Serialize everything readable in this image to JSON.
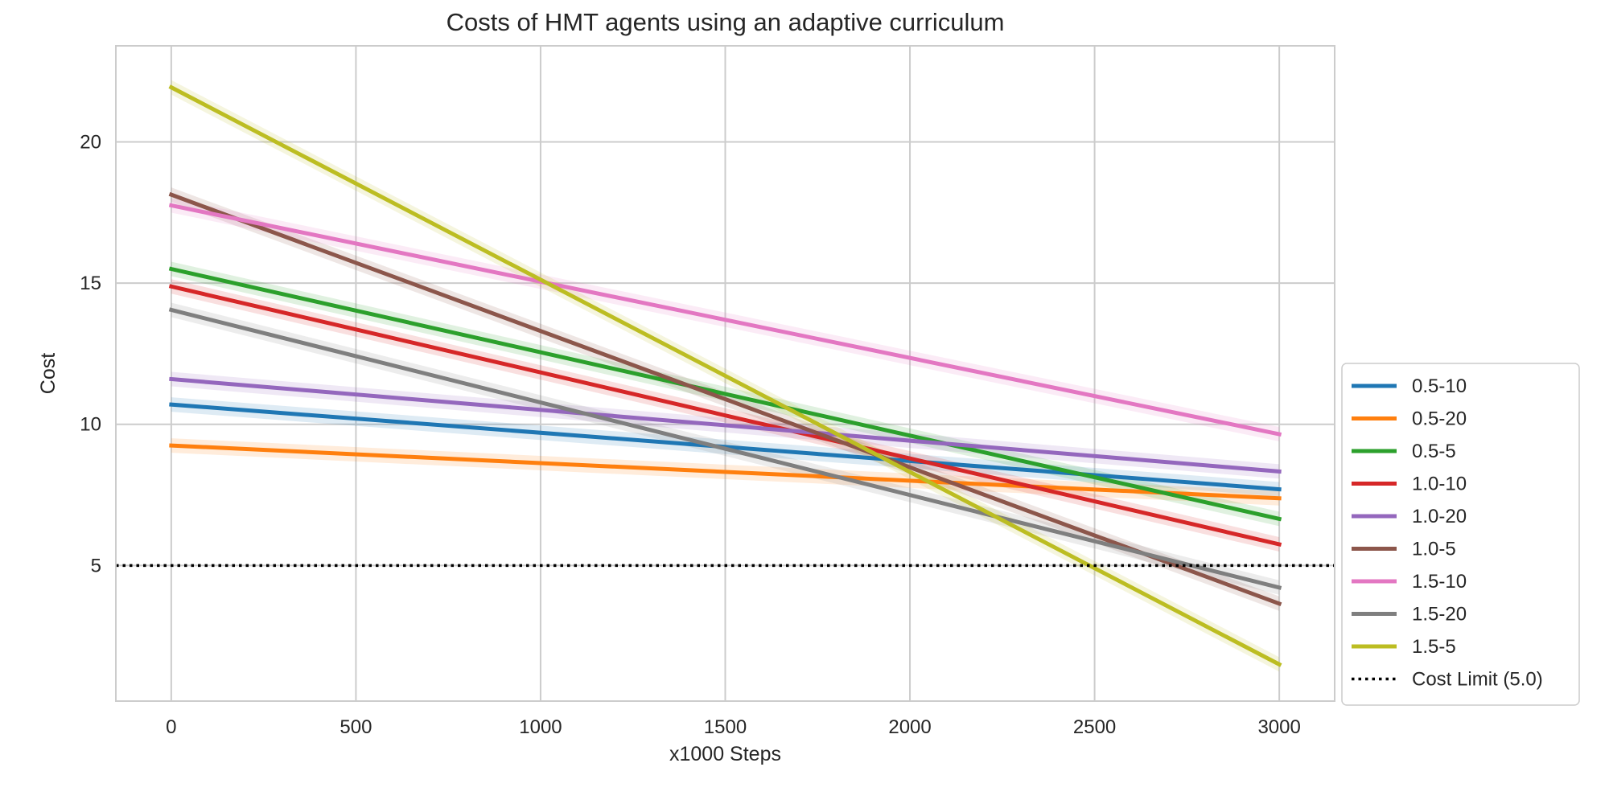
{
  "chart_data": {
    "type": "line",
    "title": "Costs of HMT agents using an adaptive curriculum",
    "xlabel": "x1000 Steps",
    "ylabel": "Cost",
    "xlim": [
      -150,
      3150
    ],
    "ylim": [
      0.2,
      23.4
    ],
    "xticks": [
      0,
      500,
      1000,
      1500,
      2000,
      2500,
      3000
    ],
    "yticks": [
      5,
      10,
      15,
      20
    ],
    "grid": true,
    "legend_position": "lower-right-outside",
    "x": [
      0,
      3000
    ],
    "series": [
      {
        "name": "0.5-10",
        "color": "#1f77b4",
        "values": [
          10.7,
          7.7
        ]
      },
      {
        "name": "0.5-20",
        "color": "#ff7f0e",
        "values": [
          9.25,
          7.38
        ]
      },
      {
        "name": "0.5-5",
        "color": "#2ca02c",
        "values": [
          15.5,
          6.65
        ]
      },
      {
        "name": "1.0-10",
        "color": "#d62728",
        "values": [
          14.88,
          5.75
        ]
      },
      {
        "name": "1.0-20",
        "color": "#9467bd",
        "values": [
          11.6,
          8.33
        ]
      },
      {
        "name": "1.0-5",
        "color": "#8c564b",
        "values": [
          18.13,
          3.65
        ]
      },
      {
        "name": "1.5-10",
        "color": "#e377c2",
        "values": [
          17.75,
          9.65
        ]
      },
      {
        "name": "1.5-20",
        "color": "#7f7f7f",
        "values": [
          14.05,
          4.22
        ]
      },
      {
        "name": "1.5-5",
        "color": "#bcbd22",
        "values": [
          21.93,
          1.5
        ]
      }
    ],
    "reference_line": {
      "name": "Cost Limit (5.0)",
      "y": 5.0,
      "color": "#000000",
      "style": "dotted"
    }
  }
}
